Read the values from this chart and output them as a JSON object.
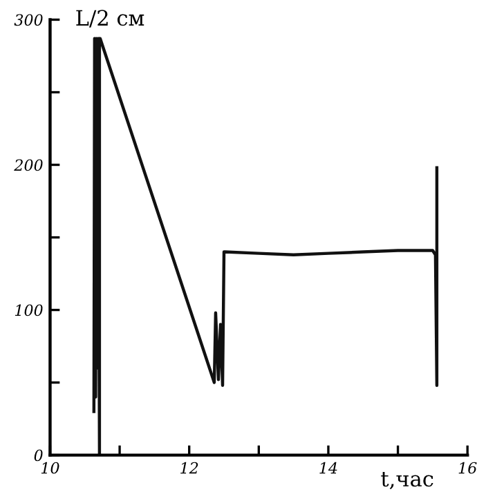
{
  "chart_data": {
    "type": "line",
    "xlabel": "t,час",
    "ylabel": "L/2 см",
    "x": [
      10.63,
      10.64,
      10.655,
      10.665,
      10.68,
      10.69,
      10.71,
      10.71,
      10.72,
      12.36,
      12.38,
      12.42,
      12.45,
      12.48,
      12.5,
      12.52,
      13.0,
      13.5,
      14.0,
      14.5,
      15.0,
      15.5,
      15.54,
      15.56,
      15.56
    ],
    "series": [
      {
        "color": "#111111",
        "values": [
          30,
          287,
          40,
          287,
          60,
          287,
          0,
          287,
          287,
          50,
          98,
          52,
          90,
          48,
          140,
          140,
          139,
          138,
          139,
          140,
          141,
          141,
          138,
          48,
          198
        ]
      }
    ],
    "xlim": [
      10,
      16
    ],
    "ylim": [
      0,
      300
    ],
    "xticks": [
      10,
      {
        "value": 11,
        "label": null
      },
      12,
      {
        "value": 13,
        "label": null
      },
      14,
      {
        "value": 15,
        "label": null
      },
      16
    ],
    "yticks": [
      0,
      {
        "value": 50,
        "label": null
      },
      100,
      {
        "value": 150,
        "label": null
      },
      200,
      {
        "value": 250,
        "label": null
      },
      300
    ],
    "grid": false,
    "legend": false,
    "marker": "none",
    "line_style": "solid"
  }
}
